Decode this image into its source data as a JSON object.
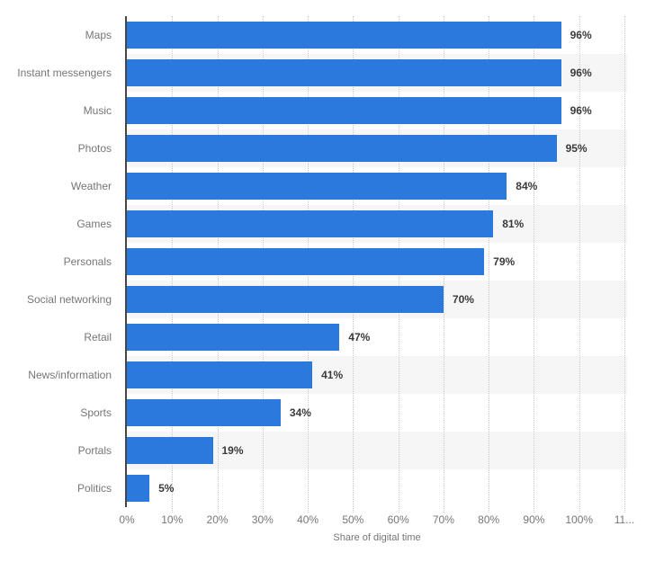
{
  "chart_data": {
    "type": "bar",
    "orientation": "horizontal",
    "title": "",
    "xlabel": "Share of digital time",
    "ylabel": "",
    "categories": [
      "Maps",
      "Instant messengers",
      "Music",
      "Photos",
      "Weather",
      "Games",
      "Personals",
      "Social networking",
      "Retail",
      "News/information",
      "Sports",
      "Portals",
      "Politics"
    ],
    "values": [
      96,
      96,
      96,
      95,
      84,
      81,
      79,
      70,
      47,
      41,
      34,
      19,
      5
    ],
    "value_labels": [
      "96%",
      "96%",
      "96%",
      "95%",
      "84%",
      "81%",
      "79%",
      "70%",
      "47%",
      "41%",
      "34%",
      "19%",
      "5%"
    ],
    "x_ticks": [
      {
        "value": 0,
        "label": "0%"
      },
      {
        "value": 10,
        "label": "10%"
      },
      {
        "value": 20,
        "label": "20%"
      },
      {
        "value": 30,
        "label": "30%"
      },
      {
        "value": 40,
        "label": "40%"
      },
      {
        "value": 50,
        "label": "50%"
      },
      {
        "value": 60,
        "label": "60%"
      },
      {
        "value": 70,
        "label": "70%"
      },
      {
        "value": 80,
        "label": "80%"
      },
      {
        "value": 90,
        "label": "90%"
      },
      {
        "value": 100,
        "label": "100%"
      },
      {
        "value": 110,
        "label": "11..."
      }
    ],
    "xlim": [
      0,
      110.6
    ],
    "grid": "vertical-dotted",
    "legend": "none",
    "colors": {
      "bar": "#2b79dd",
      "axis_line": "#454545",
      "gridline": "#c9c9c9",
      "alt_row_band": "#f6f6f7",
      "value_label": "#3a3a3a",
      "category_label": "#767676",
      "tick_label": "#767676",
      "background": "#ffffff"
    }
  }
}
